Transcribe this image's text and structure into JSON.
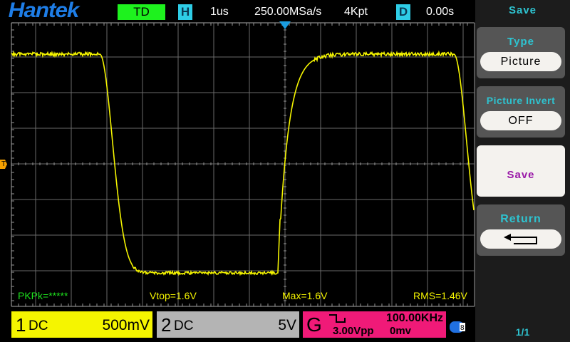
{
  "header": {
    "brand": "Hantek",
    "trigger_mode": "TD",
    "h_badge": "H",
    "timebase": "1us",
    "sample_rate": "250.00MSa/s",
    "memory_depth": "4Kpt",
    "d_badge": "D",
    "delay": "0.00s"
  },
  "trigger_level_marker": "T",
  "measurements": {
    "pkpk": "PKPk=*****",
    "vtop": "Vtop=1.6V",
    "max": "Max=1.6V",
    "rms": "RMS=1.46V"
  },
  "channels": [
    {
      "num": "1",
      "coupling": "DC",
      "scale": "500mV",
      "color": "#f5f500"
    },
    {
      "num": "2",
      "coupling": "DC",
      "scale": "5V",
      "color": "#b4b4b4"
    }
  ],
  "generator": {
    "label": "G",
    "frequency": "100.00KHz",
    "amplitude": "3.00Vpp",
    "offset": "0mv",
    "waveform_icon": "square-wave-icon",
    "color": "#f01a78"
  },
  "menu": {
    "title": "Save",
    "type_label": "Type",
    "type_value": "Picture",
    "invert_label": "Picture Invert",
    "invert_value": "OFF",
    "save_label": "Save",
    "return_label": "Return",
    "return_icon": "return-arrow-icon",
    "page": "1/1"
  },
  "colors": {
    "trace": "#f5f500",
    "grid": "#7a7a7a",
    "menu_accent": "#2ec3d0",
    "save_text": "#9a1aa8"
  }
}
